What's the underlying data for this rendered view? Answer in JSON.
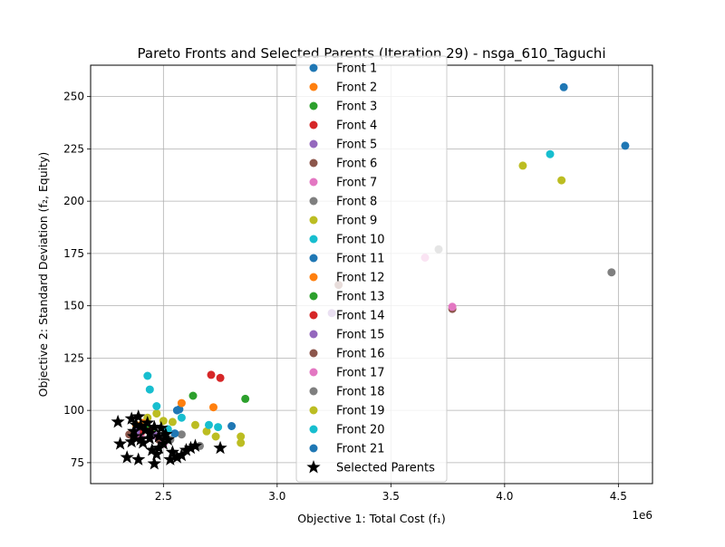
{
  "chart_data": {
    "type": "scatter",
    "title": "Pareto Fronts and Selected Parents (Iteration 29) - nsga_610_Taguchi",
    "xlabel": "Objective 1: Total Cost (f₁)",
    "ylabel": "Objective 2: Standard Deviation (f₂, Equity)",
    "x_offset_label": "1e6",
    "xlim": [
      2.18,
      4.65
    ],
    "ylim": [
      65,
      265
    ],
    "x_units": "1e6",
    "x_ticks": [
      2.5,
      3.0,
      3.5,
      4.0,
      4.5
    ],
    "x_tick_labels": [
      "2.5",
      "3.0",
      "3.5",
      "4.0",
      "4.5"
    ],
    "y_ticks": [
      75,
      100,
      125,
      150,
      175,
      200,
      225,
      250
    ],
    "y_tick_labels": [
      "75",
      "100",
      "125",
      "150",
      "175",
      "200",
      "225",
      "250"
    ],
    "grid": true,
    "legend_position": "top-center",
    "series": [
      {
        "name": "Front 1",
        "color": "#1f77b4",
        "points": [
          [
            2.57,
            100.5
          ],
          [
            4.26,
            254.5
          ],
          [
            4.53,
            226.5
          ]
        ]
      },
      {
        "name": "Front 2",
        "color": "#ff7f0e",
        "points": [
          [
            2.58,
            103.5
          ],
          [
            2.72,
            101.5
          ],
          [
            2.38,
            93
          ]
        ]
      },
      {
        "name": "Front 3",
        "color": "#2ca02c",
        "points": [
          [
            2.63,
            107
          ],
          [
            2.86,
            105.5
          ],
          [
            2.45,
            91
          ]
        ]
      },
      {
        "name": "Front 4",
        "color": "#d62728",
        "points": [
          [
            2.71,
            117
          ],
          [
            2.75,
            115.5
          ],
          [
            2.4,
            89
          ]
        ]
      },
      {
        "name": "Front 5",
        "color": "#9467bd",
        "points": [
          [
            3.24,
            146.5
          ],
          [
            2.38,
            90
          ]
        ]
      },
      {
        "name": "Front 6",
        "color": "#8c564b",
        "points": [
          [
            3.27,
            160
          ],
          [
            3.77,
            148.5
          ],
          [
            2.35,
            88.5
          ]
        ]
      },
      {
        "name": "Front 7",
        "color": "#e377c2",
        "points": [
          [
            3.65,
            173
          ],
          [
            3.77,
            149.5
          ],
          [
            2.4,
            87
          ]
        ]
      },
      {
        "name": "Front 8",
        "color": "#7f7f7f",
        "points": [
          [
            3.71,
            177
          ],
          [
            4.47,
            166
          ],
          [
            2.58,
            88.5
          ],
          [
            2.66,
            83
          ]
        ]
      },
      {
        "name": "Front 9",
        "color": "#bcbd22",
        "points": [
          [
            4.08,
            217
          ],
          [
            4.25,
            210
          ],
          [
            2.47,
            98.5
          ],
          [
            2.54,
            94.5
          ],
          [
            2.64,
            93
          ],
          [
            2.69,
            90
          ],
          [
            2.73,
            87.5
          ],
          [
            2.84,
            87.5
          ],
          [
            2.84,
            84.5
          ],
          [
            2.43,
            96.5
          ]
        ]
      },
      {
        "name": "Front 10",
        "color": "#17becf",
        "points": [
          [
            4.2,
            222.5
          ],
          [
            2.43,
            116.5
          ],
          [
            2.44,
            110
          ],
          [
            2.47,
            102
          ],
          [
            2.58,
            96.5
          ],
          [
            2.7,
            93
          ],
          [
            2.74,
            92
          ]
        ]
      },
      {
        "name": "Front 11",
        "color": "#1f77b4",
        "points": [
          [
            2.56,
            100
          ],
          [
            2.8,
            92.5
          ]
        ]
      },
      {
        "name": "Front 12",
        "color": "#ff7f0e",
        "points": [
          [
            2.41,
            94
          ]
        ]
      },
      {
        "name": "Front 13",
        "color": "#2ca02c",
        "points": [
          [
            2.42,
            92
          ]
        ]
      },
      {
        "name": "Front 14",
        "color": "#d62728",
        "points": [
          [
            2.44,
            90
          ]
        ]
      },
      {
        "name": "Front 15",
        "color": "#9467bd",
        "points": [
          [
            2.46,
            88
          ]
        ]
      },
      {
        "name": "Front 16",
        "color": "#8c564b",
        "points": [
          [
            2.48,
            86
          ]
        ]
      },
      {
        "name": "Front 17",
        "color": "#e377c2",
        "points": [
          [
            2.5,
            84
          ]
        ]
      },
      {
        "name": "Front 18",
        "color": "#7f7f7f",
        "points": [
          [
            2.53,
            86
          ]
        ]
      },
      {
        "name": "Front 19",
        "color": "#bcbd22",
        "points": [
          [
            2.5,
            95
          ]
        ]
      },
      {
        "name": "Front 20",
        "color": "#17becf",
        "points": [
          [
            2.52,
            91
          ]
        ]
      },
      {
        "name": "Front 21",
        "color": "#1f77b4",
        "points": [
          [
            2.55,
            89
          ]
        ]
      }
    ],
    "selected_parents": {
      "name": "Selected Parents",
      "color": "#000000",
      "points": [
        [
          2.3,
          94.5
        ],
        [
          2.31,
          84
        ],
        [
          2.34,
          77.5
        ],
        [
          2.36,
          96
        ],
        [
          2.36,
          85
        ],
        [
          2.37,
          90
        ],
        [
          2.38,
          93
        ],
        [
          2.39,
          97
        ],
        [
          2.39,
          76.5
        ],
        [
          2.4,
          86
        ],
        [
          2.4,
          92.5
        ],
        [
          2.41,
          84.5
        ],
        [
          2.42,
          90.5
        ],
        [
          2.43,
          94
        ],
        [
          2.44,
          89
        ],
        [
          2.45,
          81
        ],
        [
          2.46,
          92
        ],
        [
          2.46,
          74.5
        ],
        [
          2.47,
          79
        ],
        [
          2.48,
          87.5
        ],
        [
          2.49,
          91.5
        ],
        [
          2.5,
          84
        ],
        [
          2.51,
          88.5
        ],
        [
          2.52,
          86
        ],
        [
          2.53,
          76.5
        ],
        [
          2.54,
          80
        ],
        [
          2.56,
          77.5
        ],
        [
          2.58,
          78.5
        ],
        [
          2.6,
          81
        ],
        [
          2.62,
          82
        ],
        [
          2.64,
          83
        ],
        [
          2.75,
          82
        ],
        [
          2.44,
          86.5
        ],
        [
          2.37,
          87.5
        ],
        [
          2.48,
          82
        ]
      ]
    }
  }
}
